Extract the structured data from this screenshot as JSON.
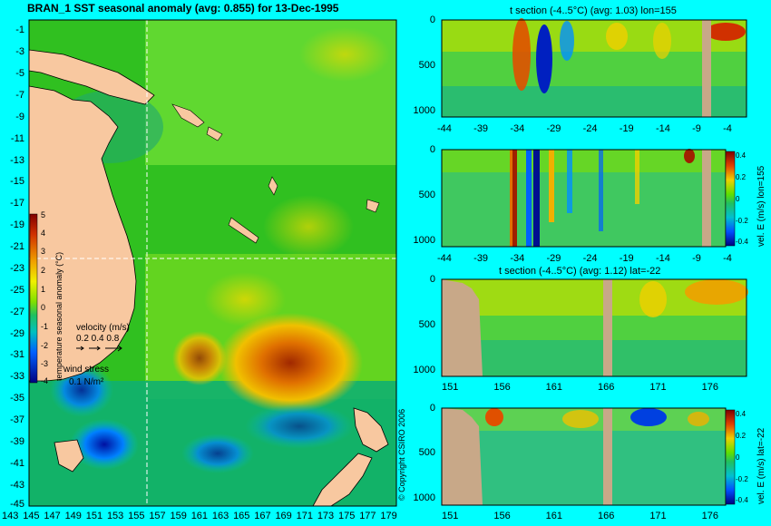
{
  "map": {
    "title": "BRAN_1 SST seasonal anomaly (avg: 0.855) for 13-Dec-1995",
    "colorbar_label": "temperature seasonal anomaly (°C)",
    "colorbar_ticks": [
      "5",
      "4",
      "3",
      "2",
      "1",
      "0",
      "-1",
      "-2",
      "-3",
      "-4"
    ],
    "velocity_label": "velocity (m/s)",
    "velocity_values": "0.2 0.4 0.8",
    "wind_label": "wind stress",
    "wind_value": "0.1 N/m²",
    "copyright": "© Copyright CSIRO 2006"
  },
  "chart_data": [
    {
      "type": "heatmap",
      "title": "BRAN_1 SST seasonal anomaly (avg: 0.855) for 13-Dec-1995",
      "x_ticks": [
        "143",
        "145",
        "147",
        "149",
        "151",
        "153",
        "155",
        "157",
        "159",
        "161",
        "163",
        "165",
        "167",
        "169",
        "171",
        "173",
        "175",
        "177",
        "179"
      ],
      "y_ticks": [
        "-1",
        "-3",
        "-5",
        "-7",
        "-9",
        "-11",
        "-13",
        "-15",
        "-17",
        "-19",
        "-21",
        "-23",
        "-25",
        "-27",
        "-29",
        "-31",
        "-33",
        "-35",
        "-37",
        "-39",
        "-41",
        "-43",
        "-45"
      ],
      "xlim": [
        142,
        180
      ],
      "ylim": [
        -45,
        0
      ],
      "crosshair": {
        "lon": 155,
        "lat": -22
      },
      "colorbar": {
        "min": -4,
        "max": 5,
        "label": "temperature seasonal anomaly (°C)"
      }
    },
    {
      "type": "heatmap",
      "title": "t section (-4..5°C) (avg: 1.03) lon=155",
      "x_ticks": [
        "-44",
        "-39",
        "-34",
        "-29",
        "-24",
        "-19",
        "-14",
        "-9",
        "-4"
      ],
      "y_ticks": [
        "0",
        "500",
        "1000"
      ],
      "xlim": [
        -45,
        -1
      ],
      "ylim": [
        1050,
        0
      ]
    },
    {
      "type": "heatmap",
      "title": "",
      "side_label": "vel. E (m/s) lon=155",
      "x_ticks": [
        "-44",
        "-39",
        "-34",
        "-29",
        "-24",
        "-19",
        "-14",
        "-9",
        "-4"
      ],
      "y_ticks": [
        "0",
        "500",
        "1000"
      ],
      "colorbar_ticks": [
        "0.4",
        "0.2",
        "0",
        "-0.2",
        "-0.4"
      ],
      "xlim": [
        -45,
        -1
      ],
      "ylim": [
        1050,
        0
      ]
    },
    {
      "type": "heatmap",
      "title": "t section (-4..5°C) (avg: 1.12) lat=-22",
      "x_ticks": [
        "151",
        "156",
        "161",
        "166",
        "171",
        "176"
      ],
      "y_ticks": [
        "0",
        "500",
        "1000"
      ],
      "xlim": [
        150,
        180
      ],
      "ylim": [
        1050,
        0
      ]
    },
    {
      "type": "heatmap",
      "title": "",
      "side_label": "vel. E (m/s) lat=-22",
      "x_ticks": [
        "151",
        "156",
        "161",
        "166",
        "171",
        "176"
      ],
      "y_ticks": [
        "0",
        "500",
        "1000"
      ],
      "colorbar_ticks": [
        "0.4",
        "0.2",
        "0",
        "-0.2",
        "-0.4"
      ],
      "xlim": [
        150,
        180
      ],
      "ylim": [
        1050,
        0
      ]
    }
  ]
}
